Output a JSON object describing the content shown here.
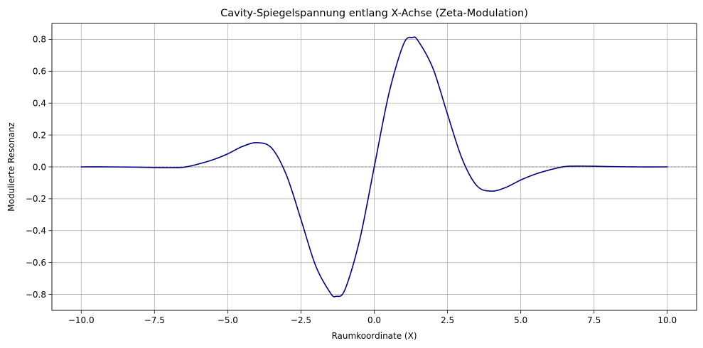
{
  "chart_data": {
    "type": "line",
    "title": "Cavity-Spiegelspannung entlang X-Achse (Zeta-Modulation)",
    "xlabel": "Raumkoordinate (X)",
    "ylabel": "Modulierte Resonanz",
    "xlim": [
      -11,
      11
    ],
    "ylim": [
      -0.9,
      0.9
    ],
    "grid": true,
    "legend": "none",
    "x_ticks": [
      {
        "value": -10,
        "label": "−10.0"
      },
      {
        "value": -7.5,
        "label": "−7.5"
      },
      {
        "value": -5,
        "label": "−5.0"
      },
      {
        "value": -2.5,
        "label": "−2.5"
      },
      {
        "value": 0,
        "label": "0.0"
      },
      {
        "value": 2.5,
        "label": "2.5"
      },
      {
        "value": 5,
        "label": "5.0"
      },
      {
        "value": 7.5,
        "label": "7.5"
      },
      {
        "value": 10,
        "label": "10.0"
      }
    ],
    "y_ticks": [
      {
        "value": -0.8,
        "label": "−0.8"
      },
      {
        "value": -0.6,
        "label": "−0.6"
      },
      {
        "value": -0.4,
        "label": "−0.4"
      },
      {
        "value": -0.2,
        "label": "−0.2"
      },
      {
        "value": 0,
        "label": "0.0"
      },
      {
        "value": 0.2,
        "label": "0.2"
      },
      {
        "value": 0.4,
        "label": "0.4"
      },
      {
        "value": 0.6,
        "label": "0.6"
      },
      {
        "value": 0.8,
        "label": "0.8"
      }
    ],
    "reference_line": {
      "y": 0,
      "style": "dashed",
      "color": "#808080"
    },
    "series": [
      {
        "color": "#000080",
        "x": [
          -10,
          -9,
          -8,
          -7.5,
          -7,
          -6.5,
          -6,
          -5.5,
          -5,
          -4.5,
          -4,
          -3.5,
          -3,
          -2.5,
          -2,
          -1.5,
          -1.3,
          -1,
          -0.5,
          0,
          0.5,
          1,
          1.3,
          1.5,
          2,
          2.5,
          3,
          3.5,
          4,
          4.5,
          5,
          5.5,
          6,
          6.5,
          7,
          7.5,
          8,
          9,
          10
        ],
        "y": [
          0.0,
          0.0,
          -0.002,
          -0.004,
          -0.005,
          -0.002,
          0.018,
          0.045,
          0.082,
          0.128,
          0.152,
          0.118,
          -0.05,
          -0.33,
          -0.62,
          -0.79,
          -0.812,
          -0.77,
          -0.46,
          0.0,
          0.46,
          0.77,
          0.812,
          0.79,
          0.62,
          0.33,
          0.05,
          -0.118,
          -0.152,
          -0.128,
          -0.082,
          -0.045,
          -0.018,
          0.002,
          0.005,
          0.004,
          0.002,
          0.0,
          0.0
        ]
      }
    ]
  }
}
